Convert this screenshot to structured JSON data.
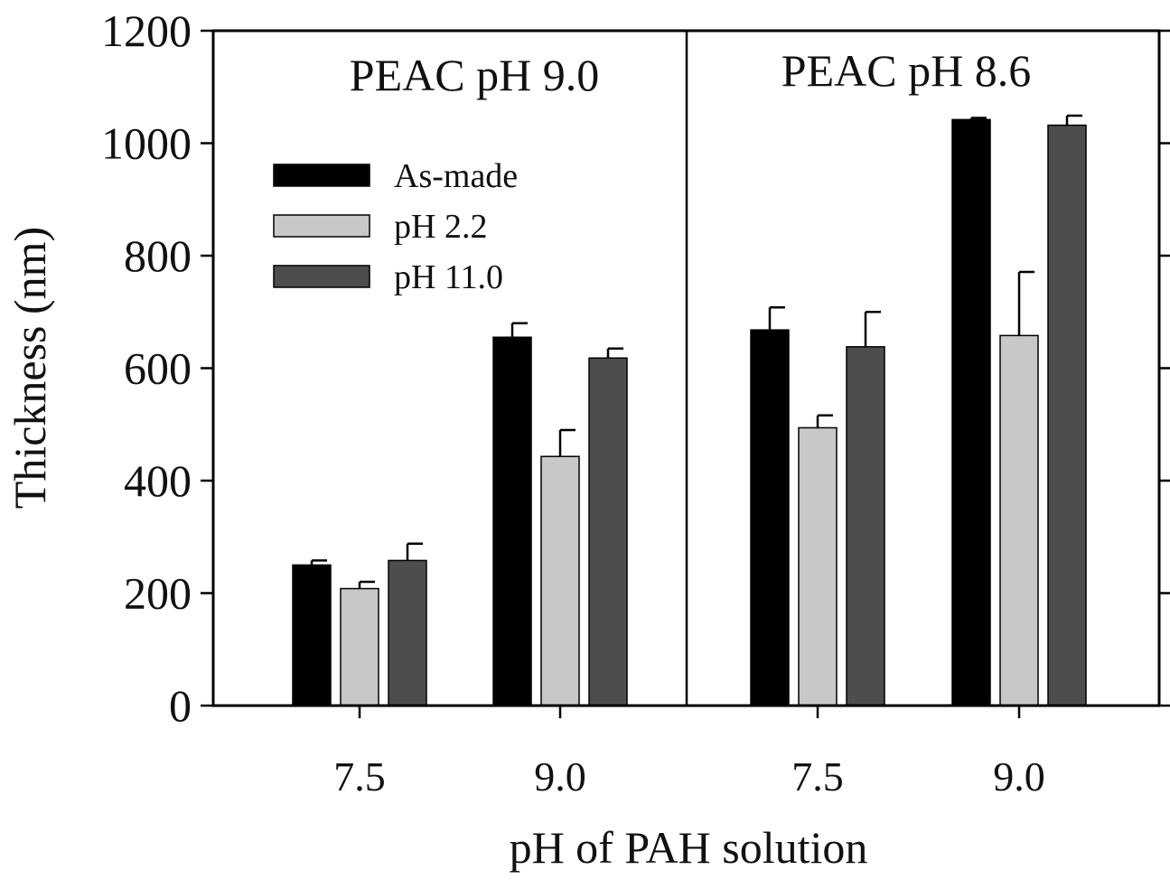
{
  "chart_data": {
    "type": "bar",
    "xlabel": "pH of PAH solution",
    "ylabel": "Thickness (nm)",
    "ylim": [
      0,
      1200
    ],
    "yticks": [
      "0",
      "200",
      "400",
      "600",
      "800",
      "1000",
      "1200"
    ],
    "grid": false,
    "legend_position": "top-left of first panel",
    "colors": {
      "As-made": "#000000",
      "pH 2.2": "#c8c8c8",
      "pH 11.0": "#4d4d4d"
    },
    "panels": [
      {
        "title": "PEAC pH 9.0",
        "categories": [
          "7.5",
          "9.0"
        ],
        "series": [
          {
            "name": "As-made",
            "values": [
              250,
              655
            ],
            "errors": [
              8,
              25
            ]
          },
          {
            "name": "pH 2.2",
            "values": [
              208,
              443
            ],
            "errors": [
              12,
              47
            ]
          },
          {
            "name": "pH 11.0",
            "values": [
              258,
              618
            ],
            "errors": [
              30,
              17
            ]
          }
        ]
      },
      {
        "title": "PEAC pH 8.6",
        "categories": [
          "7.5",
          "9.0"
        ],
        "series": [
          {
            "name": "As-made",
            "values": [
              668,
              1042
            ],
            "errors": [
              40,
              3
            ]
          },
          {
            "name": "pH 2.2",
            "values": [
              494,
              658
            ],
            "errors": [
              22,
              113
            ]
          },
          {
            "name": "pH 11.0",
            "values": [
              638,
              1032
            ],
            "errors": [
              62,
              17
            ]
          }
        ]
      }
    ]
  }
}
